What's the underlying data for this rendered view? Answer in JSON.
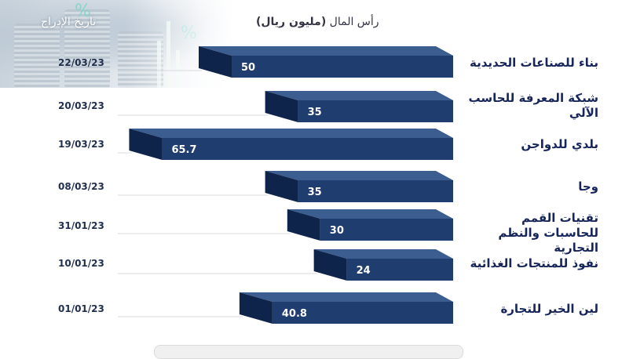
{
  "header": {
    "date_column": "تاريخ الإدراج",
    "capital_prefix": "رأس المال",
    "capital_unit": "(مليون ريال)"
  },
  "colors": {
    "bar_front": "#1f3d6e",
    "bar_top": "#3c5d8f",
    "bar_side": "#0f244a",
    "company_text": "#16255a"
  },
  "chart_data": {
    "type": "bar",
    "orientation": "horizontal",
    "value_label": "رأس المال (مليون ريال)",
    "category_label": "تاريخ الإدراج",
    "companies": [
      "بناء للصناعات الحديدية",
      "شبكة المعرفة للحاسب الآلي",
      "بلدي للدواجن",
      "وجا",
      "تقنيات القمم للحاسبات والنظم التجارية",
      "نفوذ للمنتجات الغذائية",
      "لين الخير للتجارة"
    ],
    "dates": [
      "22/03/23",
      "20/03/23",
      "19/03/23",
      "08/03/23",
      "31/01/23",
      "10/01/23",
      "01/01/23"
    ],
    "values": [
      50,
      35,
      65.7,
      35,
      30,
      24,
      40.8
    ],
    "value_labels": [
      "50",
      "35",
      "65.7",
      "35",
      "30",
      "24",
      "40.8"
    ]
  }
}
